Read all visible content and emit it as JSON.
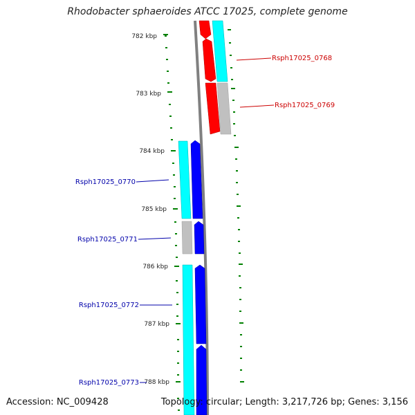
{
  "title": "Rhodobacter sphaeroides ATCC 17025, complete genome",
  "footer": {
    "accession": "Accession: NC_009428",
    "summary": "Topology: circular; Length: 3,217,726 bp; Genes: 3,156"
  },
  "kbp_labels": [
    "782 kbp",
    "783 kbp",
    "784 kbp",
    "785 kbp",
    "786 kbp",
    "787 kbp",
    "788 kbp"
  ],
  "genes": [
    {
      "label": "Rsph17025_0768",
      "strand": "forward",
      "color": "#cc0000"
    },
    {
      "label": "Rsph17025_0769",
      "strand": "forward",
      "color": "#cc0000"
    },
    {
      "label": "Rsph17025_0770",
      "strand": "reverse",
      "color": "#0000aa"
    },
    {
      "label": "Rsph17025_0771",
      "strand": "reverse",
      "color": "#0000aa"
    },
    {
      "label": "Rsph17025_0772",
      "strand": "reverse",
      "color": "#0000aa"
    },
    {
      "label": "Rsph17025_0773",
      "strand": "reverse",
      "color": "#0000aa"
    }
  ],
  "colors": {
    "forward_cds": "#ff0000",
    "reverse_cds": "#0000ff",
    "orf_track": "#00ffff",
    "gap_track": "#c0c0c0",
    "backbone": "#808080",
    "tick": "#008000"
  }
}
